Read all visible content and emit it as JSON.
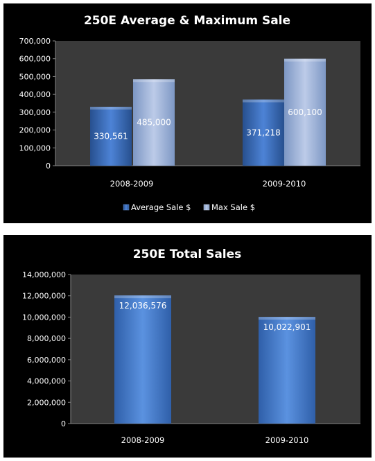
{
  "chart_data": [
    {
      "type": "bar",
      "title": "250E Average & Maximum Sale",
      "categories": [
        "2008-2009",
        "2009-2010"
      ],
      "series": [
        {
          "name": "Average Sale $",
          "values": [
            330561,
            371218
          ],
          "labels": [
            "330,561",
            "371,218"
          ],
          "color": "#3f6fbf"
        },
        {
          "name": "Max Sale $",
          "values": [
            485000,
            600100
          ],
          "labels": [
            "485,000",
            "600,100"
          ],
          "color": "#9fb5dc"
        }
      ],
      "yticks": [
        "0",
        "100,000",
        "200,000",
        "300,000",
        "400,000",
        "500,000",
        "600,000",
        "700,000"
      ],
      "ylim": [
        0,
        700000
      ],
      "grid": false,
      "legend": "bottom",
      "plot_background": "#3a3a3a"
    },
    {
      "type": "bar",
      "title": "250E Total Sales",
      "categories": [
        "2008-2009",
        "2009-2010"
      ],
      "series": [
        {
          "values": [
            12036576,
            10022901
          ],
          "labels": [
            "12,036,576",
            "10,022,901"
          ],
          "color": "#4a80cf"
        }
      ],
      "yticks": [
        "0",
        "2,000,000",
        "4,000,000",
        "6,000,000",
        "8,000,000",
        "10,000,000",
        "12,000,000",
        "14,000,000"
      ],
      "ylim": [
        0,
        14000000
      ],
      "grid": false,
      "legend": "none",
      "plot_background": "#3a3a3a"
    }
  ]
}
